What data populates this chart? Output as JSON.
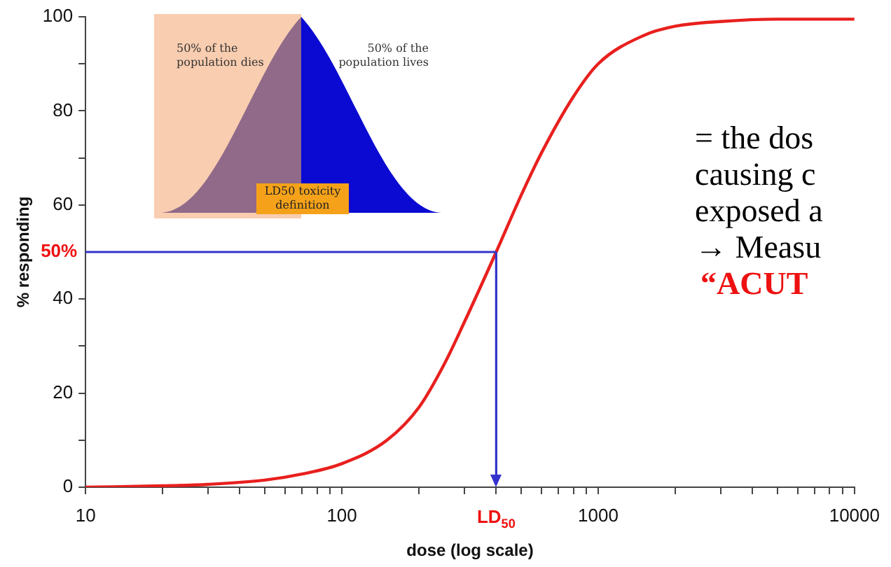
{
  "chart_data": {
    "type": "line",
    "xlabel": "dose (log scale)",
    "ylabel": "% responding",
    "log": "x",
    "x": [
      10,
      20,
      30,
      50,
      70,
      100,
      150,
      200,
      250,
      300,
      400,
      500,
      600,
      800,
      1000,
      1500,
      2000,
      3000,
      5000,
      10000
    ],
    "series": [
      {
        "color": "#e8201e",
        "values": [
          0,
          0.3,
          0.6,
          1.5,
          2.8,
          5,
          10,
          17,
          26,
          35,
          50,
          62,
          71,
          83,
          90,
          96,
          98,
          99,
          99.5,
          99.5
        ]
      }
    ],
    "xlim": [
      10,
      10000
    ],
    "ylim": [
      0,
      100
    ],
    "xticks": [
      10,
      {
        "value": 20,
        "label": null
      },
      {
        "value": 30,
        "label": null
      },
      {
        "value": 40,
        "label": null
      },
      {
        "value": 50,
        "label": null
      },
      {
        "value": 60,
        "label": null
      },
      {
        "value": 70,
        "label": null
      },
      {
        "value": 80,
        "label": null
      },
      {
        "value": 90,
        "label": null
      },
      100,
      {
        "value": 200,
        "label": null
      },
      {
        "value": 300,
        "label": null
      },
      {
        "value": 400,
        "label": null
      },
      {
        "value": 500,
        "label": null
      },
      {
        "value": 600,
        "label": null
      },
      {
        "value": 700,
        "label": null
      },
      {
        "value": 800,
        "label": null
      },
      {
        "value": 900,
        "label": null
      },
      1000,
      {
        "value": 2000,
        "label": null
      },
      {
        "value": 3000,
        "label": null
      },
      {
        "value": 4000,
        "label": null
      },
      {
        "value": 5000,
        "label": null
      },
      {
        "value": 6000,
        "label": null
      },
      {
        "value": 7000,
        "label": null
      },
      {
        "value": 8000,
        "label": null
      },
      {
        "value": 9000,
        "label": null
      },
      10000
    ],
    "yticks": [
      0,
      {
        "value": 10,
        "label": null
      },
      20,
      {
        "value": 30,
        "label": null
      },
      40,
      60,
      {
        "value": 70,
        "label": null
      },
      80,
      {
        "value": 90,
        "label": null
      },
      100
    ],
    "ref_lines": [
      {
        "axis": "y",
        "value": 50,
        "label": "50%",
        "color": "#3333cc"
      },
      {
        "axis": "x",
        "value": 400,
        "label": "LD$_{50}$",
        "color": "#3333cc"
      }
    ],
    "grid": false,
    "legend": false,
    "marker": "none",
    "line_style": "solid",
    "annotations": [
      "50% of the population dies",
      "50% of the population lives",
      "LD50 toxicity definition",
      "= the dos",
      "causing c",
      "exposed a",
      "→ Measu",
      "“ACUT"
    ]
  }
}
